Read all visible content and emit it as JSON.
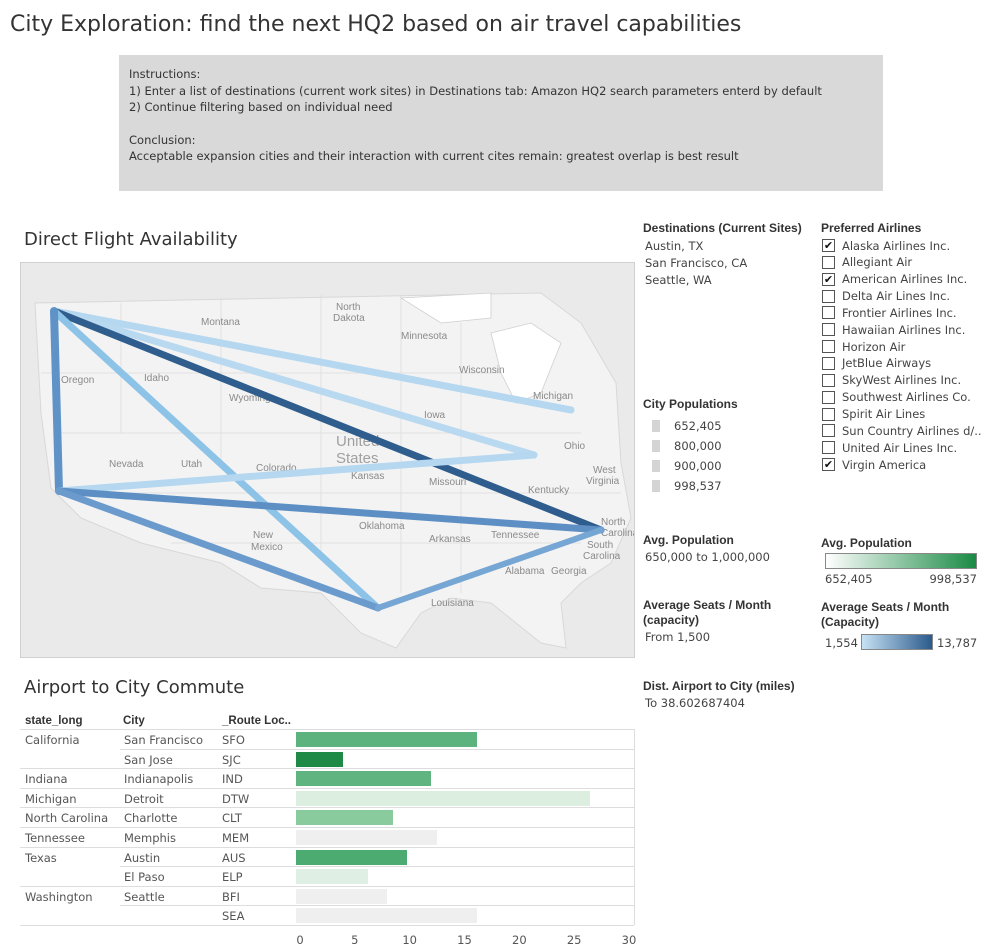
{
  "title": "City Exploration: find the next HQ2 based on air travel capabilities",
  "instructions": {
    "line1": "Instructions:",
    "line2": "1) Enter a list of destinations (current work sites) in Destinations tab: Amazon HQ2 search parameters enterd by default",
    "line3": "2) Continue filtering based on individual need",
    "line4": "Conclusion:",
    "line5": "Acceptable expansion cities and their interaction with current cites remain: greatest overlap is best result"
  },
  "map": {
    "title": "Direct Flight Availability",
    "labels": [
      "Montana",
      "North Dakota",
      "Minnesota",
      "Oregon",
      "Idaho",
      "Wyoming",
      "Wisconsin",
      "Michigan",
      "Iowa",
      "Nevada",
      "Utah",
      "Colorado",
      "United States",
      "Kansas",
      "Missouri",
      "Ohio",
      "West Virginia",
      "Kentucky",
      "North Carolina",
      "Oklahoma",
      "Arkansas",
      "Tennessee",
      "New Mexico",
      "South Carolina",
      "Georgia",
      "Alabama",
      "Louisiana"
    ]
  },
  "destinations": {
    "title": "Destinations (Current Sites)",
    "items": [
      "Austin, TX",
      "San Francisco, CA",
      "Seattle, WA"
    ]
  },
  "preferred_airlines": {
    "title": "Preferred Airlines",
    "items": [
      {
        "label": "Alaska Airlines Inc.",
        "checked": true
      },
      {
        "label": "Allegiant Air",
        "checked": false
      },
      {
        "label": "American Airlines Inc.",
        "checked": true
      },
      {
        "label": "Delta Air Lines Inc.",
        "checked": false
      },
      {
        "label": "Frontier Airlines Inc.",
        "checked": false
      },
      {
        "label": "Hawaiian Airlines Inc.",
        "checked": false
      },
      {
        "label": "Horizon Air",
        "checked": false
      },
      {
        "label": "JetBlue Airways",
        "checked": false
      },
      {
        "label": "SkyWest Airlines Inc.",
        "checked": false
      },
      {
        "label": "Southwest Airlines Co.",
        "checked": false
      },
      {
        "label": "Spirit Air Lines",
        "checked": false
      },
      {
        "label": "Sun Country Airlines d/..",
        "checked": false
      },
      {
        "label": "United Air Lines Inc.",
        "checked": false
      },
      {
        "label": "Virgin America",
        "checked": true
      }
    ]
  },
  "city_populations": {
    "title": "City Populations",
    "items": [
      "652,405",
      "800,000",
      "900,000",
      "998,537"
    ]
  },
  "avg_population_filter": {
    "title": "Avg. Population",
    "value": "650,000 to 1,000,000"
  },
  "avg_population_legend": {
    "title": "Avg. Population",
    "min": "652,405",
    "max": "998,537",
    "color_low": "#ffffff",
    "color_high": "#1a8a45"
  },
  "avg_seats_filter": {
    "title_line1": "Average Seats / Month",
    "title_line2": "(capacity)",
    "value": "From 1,500"
  },
  "avg_seats_legend": {
    "title_line1": "Average Seats / Month",
    "title_line2": "(Capacity)",
    "min": "1,554",
    "max": "13,787",
    "color_low": "#c6e2f5",
    "color_high": "#2b5a8c"
  },
  "dist_filter": {
    "title": "Dist. Airport to City (miles)",
    "value": "To 38.602687404"
  },
  "commute": {
    "title": "Airport to City Commute",
    "headers": [
      "state_long",
      "City",
      "_Route Loc.."
    ],
    "rows": [
      {
        "state": "California",
        "city": "San Francisco",
        "code": "SFO",
        "value": 16.5,
        "color": "#5cb37d"
      },
      {
        "state": "",
        "city": "San Jose",
        "code": "SJC",
        "value": 4.3,
        "color": "#1e8a45"
      },
      {
        "state": "Indiana",
        "city": "Indianapolis",
        "code": "IND",
        "value": 12.3,
        "color": "#5fb47f"
      },
      {
        "state": "Michigan",
        "city": "Detroit",
        "code": "DTW",
        "value": 26.8,
        "color": "#dbeedf"
      },
      {
        "state": "North Carolina",
        "city": "Charlotte",
        "code": "CLT",
        "value": 8.8,
        "color": "#8acb9e"
      },
      {
        "state": "Tennessee",
        "city": "Memphis",
        "code": "MEM",
        "value": 12.9,
        "color": "#efefef"
      },
      {
        "state": "Texas",
        "city": "Austin",
        "code": "AUS",
        "value": 10.1,
        "color": "#4cab70"
      },
      {
        "state": "",
        "city": "El Paso",
        "code": "ELP",
        "value": 6.6,
        "color": "#e0efe3"
      },
      {
        "state": "Washington",
        "city": "Seattle",
        "code": "BFI",
        "value": 8.3,
        "color": "#efefef"
      },
      {
        "state": "",
        "city": "",
        "code": "SEA",
        "value": 16.5,
        "color": "#efefef"
      }
    ],
    "axis_ticks": [
      "0",
      "5",
      "10",
      "15",
      "20",
      "25",
      "30"
    ]
  }
}
